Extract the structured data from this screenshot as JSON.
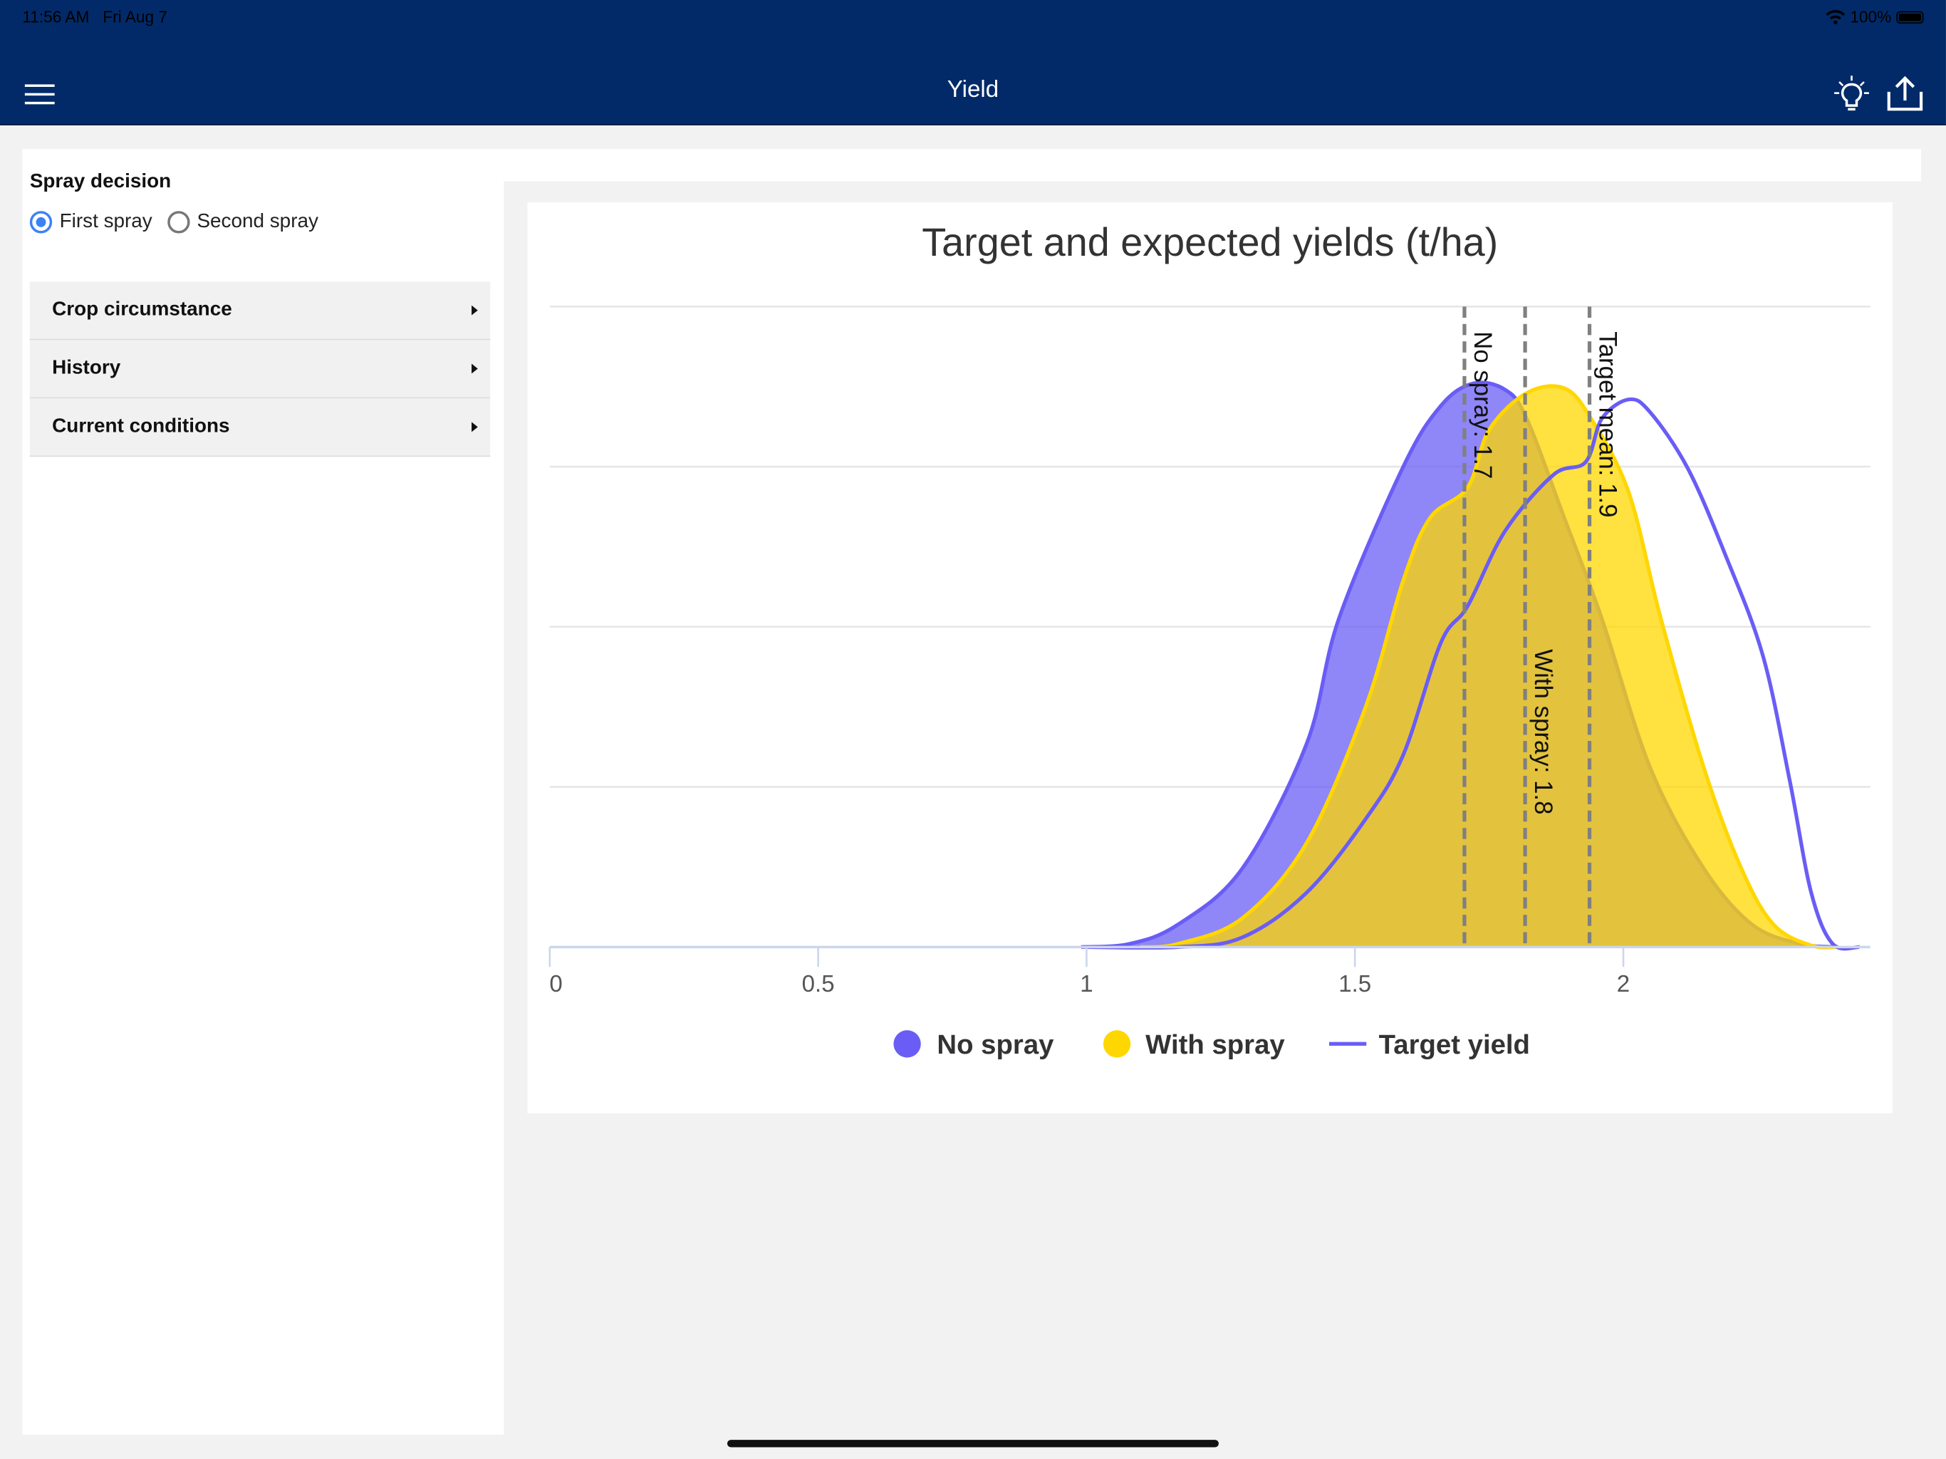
{
  "status_bar": {
    "time": "11:56 AM",
    "date": "Fri Aug 7",
    "battery": "100%"
  },
  "header": {
    "title": "Yield",
    "menu_icon": "hamburger-icon",
    "hint_icon": "lightbulb-icon",
    "share_icon": "share-icon"
  },
  "sidebar": {
    "spray_decision_label": "Spray decision",
    "options": [
      {
        "label": "First spray",
        "selected": true
      },
      {
        "label": "Second spray",
        "selected": false
      }
    ],
    "sections": [
      {
        "label": "Crop circumstance"
      },
      {
        "label": "History"
      },
      {
        "label": "Current conditions"
      }
    ]
  },
  "chart_data": {
    "type": "area",
    "title": "Target and expected yields (t/ha)",
    "xlabel": "",
    "ylabel": "",
    "xlim": [
      0,
      2.46
    ],
    "ylim": [
      0,
      4
    ],
    "x_ticks": [
      "0",
      "0.5",
      "1",
      "1.5",
      "2"
    ],
    "x_tick_values": [
      0,
      0.5,
      1,
      1.5,
      2
    ],
    "y_gridlines": [
      1,
      2,
      3,
      4
    ],
    "grid": true,
    "legend_position": "bottom-center",
    "colors": {
      "no_spray": "#6a5df5",
      "with_spray": "#ffd700",
      "target": "#6a5df5",
      "ref_line": "#808080"
    },
    "series": [
      {
        "name": "No spray",
        "kind": "area",
        "points": [
          [
            0.99,
            0
          ],
          [
            1.08,
            0.02
          ],
          [
            1.17,
            0.14
          ],
          [
            1.29,
            0.49
          ],
          [
            1.41,
            1.27
          ],
          [
            1.47,
            2.05
          ],
          [
            1.59,
            3.0
          ],
          [
            1.66,
            3.38
          ],
          [
            1.72,
            3.52
          ],
          [
            1.78,
            3.48
          ],
          [
            1.82,
            3.3
          ],
          [
            1.89,
            2.68
          ],
          [
            1.96,
            2.05
          ],
          [
            2.05,
            1.12
          ],
          [
            2.15,
            0.49
          ],
          [
            2.24,
            0.14
          ],
          [
            2.33,
            0.02
          ],
          [
            2.4,
            0
          ]
        ]
      },
      {
        "name": "With spray",
        "kind": "area",
        "points": [
          [
            1.1,
            0
          ],
          [
            1.17,
            0.02
          ],
          [
            1.29,
            0.18
          ],
          [
            1.41,
            0.65
          ],
          [
            1.52,
            1.5
          ],
          [
            1.59,
            2.29
          ],
          [
            1.64,
            2.68
          ],
          [
            1.71,
            2.87
          ],
          [
            1.75,
            3.23
          ],
          [
            1.82,
            3.46
          ],
          [
            1.89,
            3.49
          ],
          [
            1.94,
            3.3
          ],
          [
            2.01,
            2.84
          ],
          [
            2.07,
            2.05
          ],
          [
            2.15,
            1.12
          ],
          [
            2.22,
            0.49
          ],
          [
            2.28,
            0.14
          ],
          [
            2.35,
            0.01
          ],
          [
            2.4,
            0
          ]
        ]
      },
      {
        "name": "Target yield",
        "kind": "line",
        "points": [
          [
            1.0,
            0
          ],
          [
            1.17,
            0
          ],
          [
            1.29,
            0.06
          ],
          [
            1.41,
            0.34
          ],
          [
            1.52,
            0.8
          ],
          [
            1.59,
            1.2
          ],
          [
            1.66,
            1.9
          ],
          [
            1.71,
            2.13
          ],
          [
            1.78,
            2.6
          ],
          [
            1.87,
            2.95
          ],
          [
            1.93,
            3.03
          ],
          [
            1.96,
            3.3
          ],
          [
            2.01,
            3.42
          ],
          [
            2.05,
            3.34
          ],
          [
            2.12,
            2.99
          ],
          [
            2.19,
            2.45
          ],
          [
            2.26,
            1.82
          ],
          [
            2.31,
            1.04
          ],
          [
            2.35,
            0.34
          ],
          [
            2.39,
            0.02
          ],
          [
            2.44,
            0
          ]
        ]
      }
    ],
    "reference_lines": [
      {
        "label": "No spray: 1.7",
        "value": 1.704
      },
      {
        "label": "With spray: 1.8",
        "value": 1.817
      },
      {
        "label": "Target mean: 1.9",
        "value": 1.937
      }
    ]
  }
}
